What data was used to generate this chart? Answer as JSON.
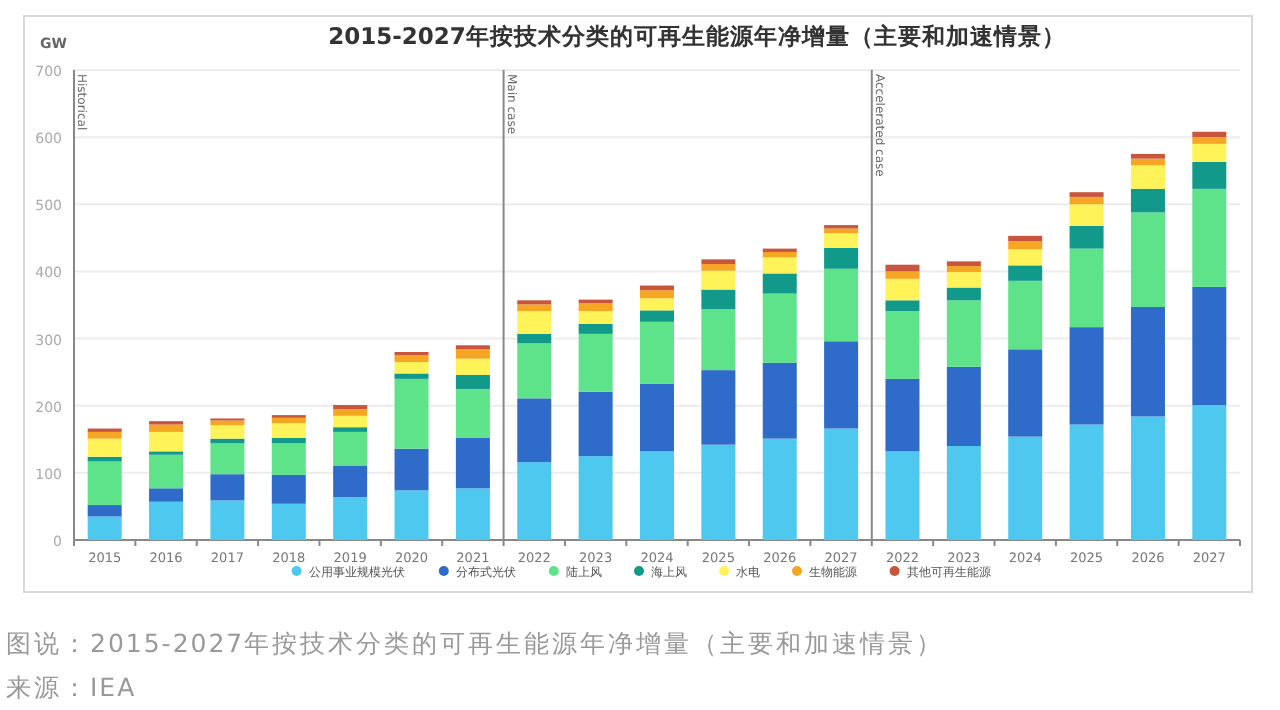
{
  "chart_data": {
    "type": "bar",
    "stacked": true,
    "title": "2015-2027年按技术分类的可再生能源年净增量（主要和加速情景）",
    "ylabel": "GW",
    "categories": [
      "2015",
      "2016",
      "2017",
      "2018",
      "2019",
      "2020",
      "2021",
      "2022",
      "2023",
      "2024",
      "2025",
      "2026",
      "2027",
      "2022",
      "2023",
      "2024",
      "2025",
      "2026",
      "2027"
    ],
    "series": [
      {
        "name": "公用事业规模光伏",
        "color": "#4fc8f0",
        "values": [
          35,
          57,
          59,
          54,
          64,
          74,
          77,
          116,
          125,
          132,
          142,
          151,
          166,
          132,
          140,
          154,
          172,
          184,
          201
        ]
      },
      {
        "name": "分布式光伏",
        "color": "#2f6bc8",
        "values": [
          17,
          20,
          39,
          43,
          47,
          62,
          75,
          95,
          96,
          101,
          111,
          113,
          130,
          108,
          118,
          130,
          145,
          163,
          176
        ]
      },
      {
        "name": "陆上风",
        "color": "#5ee38a",
        "values": [
          65,
          50,
          46,
          47,
          50,
          104,
          73,
          82,
          86,
          92,
          91,
          103,
          108,
          101,
          99,
          102,
          117,
          141,
          146
        ]
      },
      {
        "name": "海上风",
        "color": "#11998a",
        "values": [
          7,
          5,
          7,
          8,
          7,
          8,
          21,
          14,
          15,
          17,
          29,
          30,
          31,
          16,
          19,
          23,
          34,
          35,
          40
        ]
      },
      {
        "name": "水电",
        "color": "#fff35a",
        "values": [
          27,
          29,
          20,
          22,
          17,
          17,
          24,
          34,
          19,
          18,
          28,
          24,
          22,
          32,
          23,
          24,
          32,
          35,
          27
        ]
      },
      {
        "name": "生物能源",
        "color": "#f5a623",
        "values": [
          10,
          11,
          7,
          8,
          10,
          10,
          14,
          10,
          12,
          12,
          10,
          8,
          7,
          11,
          9,
          12,
          11,
          10,
          10
        ]
      },
      {
        "name": "其他可再生能源",
        "color": "#c8553d",
        "values": [
          5,
          5,
          3,
          4,
          6,
          5,
          6,
          6,
          5,
          7,
          7,
          5,
          5,
          10,
          7,
          8,
          7,
          7,
          8
        ]
      }
    ],
    "ylim": [
      0,
      700
    ],
    "yticks": [
      0,
      100,
      200,
      300,
      400,
      500,
      600,
      700
    ],
    "grid": "y",
    "legend": "bottom",
    "annotations": [
      "Historical",
      "Main case",
      "Accelerated case",
      "图说：2015-2027年按技术分类的可再生能源年净增量（主要和加速情景）",
      "来源：IEA"
    ]
  }
}
